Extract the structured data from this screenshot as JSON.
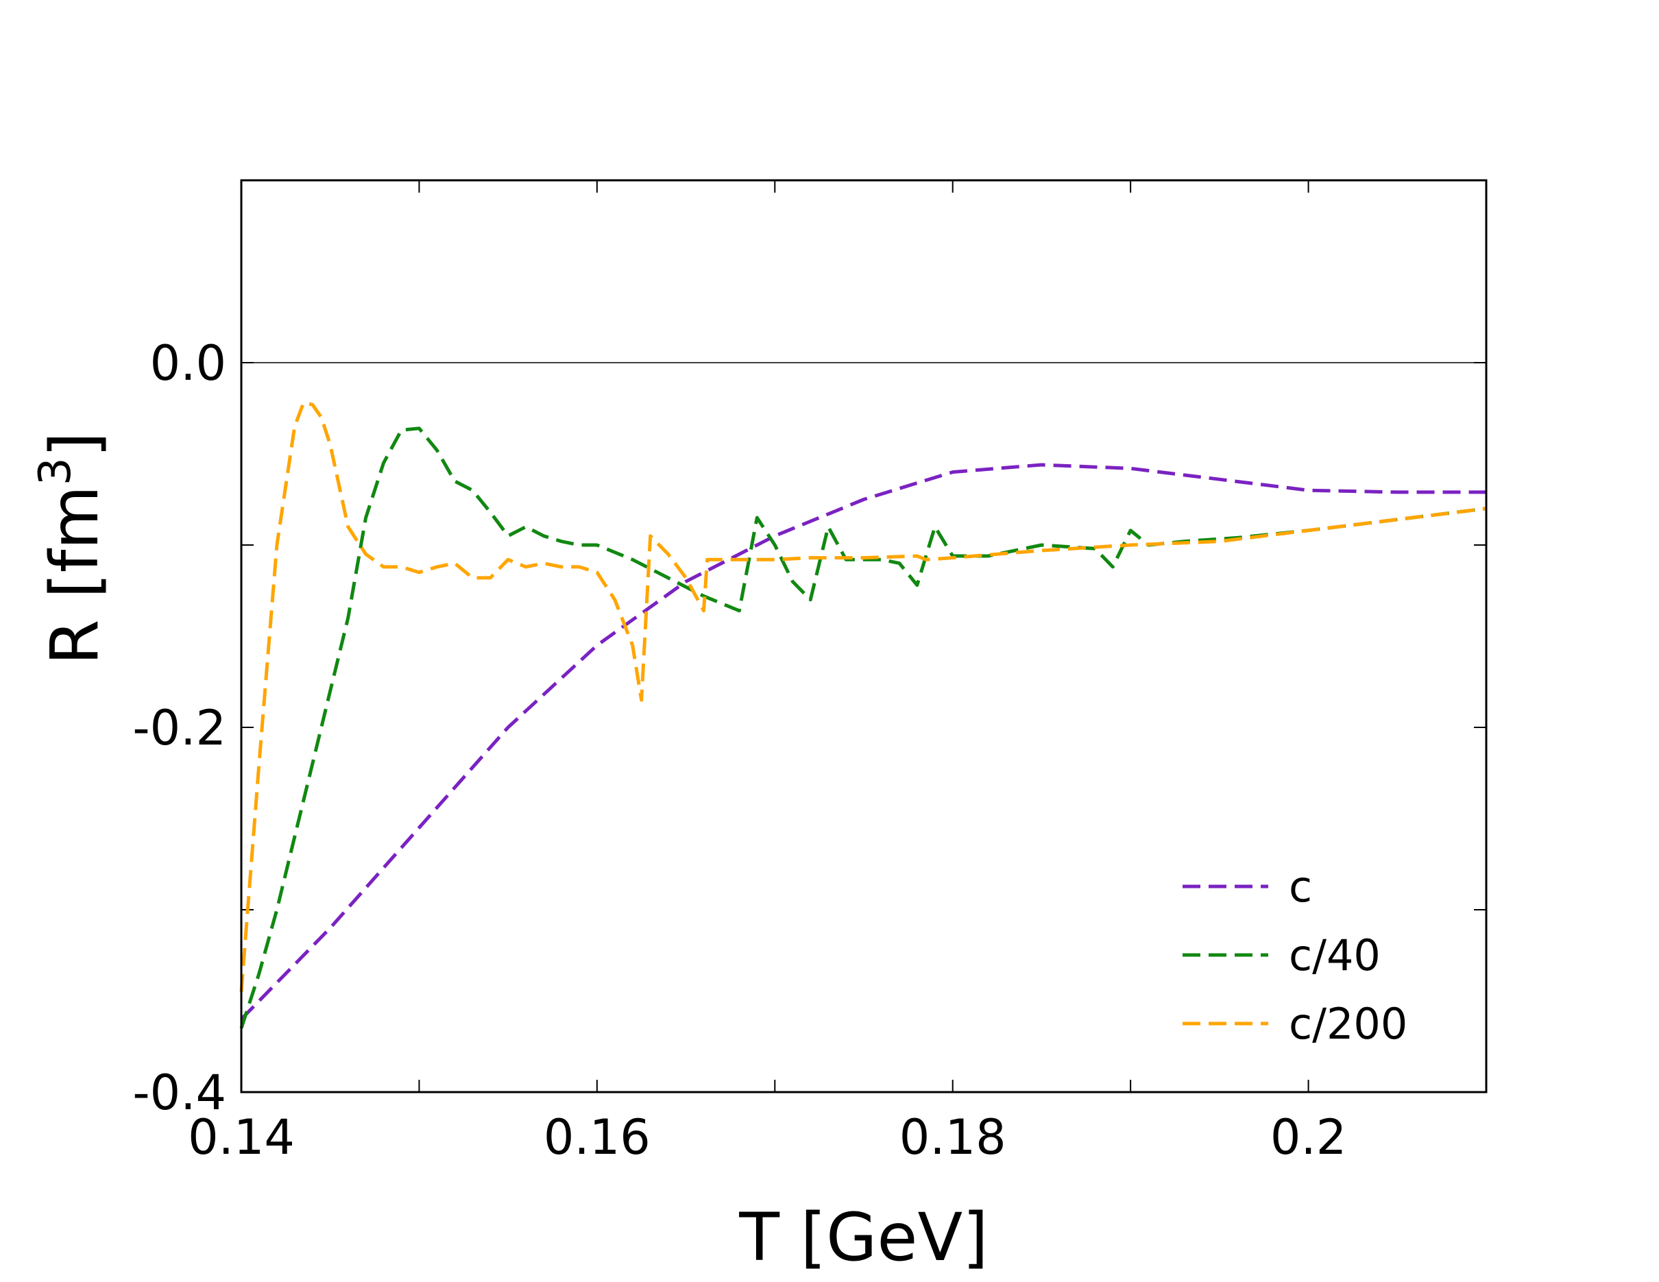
{
  "chart_data": {
    "type": "line",
    "title": "",
    "xlabel": "T [GeV]",
    "ylabel_main": "R [fm",
    "ylabel_sup": "3",
    "ylabel_close": "]",
    "xlim": [
      0.14,
      0.21
    ],
    "ylim": [
      -0.4,
      0.1
    ],
    "x_ticks": [
      0.14,
      0.16,
      0.18,
      0.2
    ],
    "x_tick_labels": [
      "0.14",
      "0.16",
      "0.18",
      "0.2"
    ],
    "y_ticks": [
      -0.4,
      -0.2,
      0.0
    ],
    "y_tick_labels": [
      "-0.4",
      "-0.2",
      "0.0"
    ],
    "y_minor_ticks": [
      -0.3,
      -0.1,
      0.1
    ],
    "x_minor_ticks": [
      0.15,
      0.17,
      0.19
    ],
    "zero_line": 0.0,
    "grid": false,
    "legend_position": "bottom-right",
    "series": [
      {
        "name": "c",
        "color": "#7a22c2",
        "x": [
          0.14,
          0.145,
          0.15,
          0.155,
          0.16,
          0.165,
          0.17,
          0.175,
          0.18,
          0.185,
          0.19,
          0.195,
          0.2,
          0.205,
          0.21
        ],
        "y": [
          -0.36,
          -0.31,
          -0.255,
          -0.2,
          -0.155,
          -0.12,
          -0.095,
          -0.075,
          -0.06,
          -0.056,
          -0.058,
          -0.064,
          -0.07,
          -0.071,
          -0.071
        ]
      },
      {
        "name": "c/40",
        "color": "#118811",
        "x": [
          0.14,
          0.141,
          0.142,
          0.143,
          0.144,
          0.145,
          0.146,
          0.147,
          0.148,
          0.149,
          0.15,
          0.151,
          0.152,
          0.153,
          0.154,
          0.155,
          0.156,
          0.157,
          0.158,
          0.159,
          0.16,
          0.162,
          0.164,
          0.166,
          0.168,
          0.169,
          0.17,
          0.171,
          0.172,
          0.173,
          0.174,
          0.175,
          0.176,
          0.177,
          0.178,
          0.179,
          0.18,
          0.182,
          0.185,
          0.188,
          0.189,
          0.19,
          0.191,
          0.193,
          0.196,
          0.2,
          0.205,
          0.21
        ],
        "y": [
          -0.365,
          -0.335,
          -0.3,
          -0.26,
          -0.22,
          -0.18,
          -0.14,
          -0.085,
          -0.055,
          -0.037,
          -0.036,
          -0.048,
          -0.065,
          -0.07,
          -0.082,
          -0.095,
          -0.09,
          -0.095,
          -0.098,
          -0.1,
          -0.1,
          -0.108,
          -0.118,
          -0.128,
          -0.136,
          -0.085,
          -0.1,
          -0.12,
          -0.13,
          -0.09,
          -0.108,
          -0.108,
          -0.108,
          -0.11,
          -0.122,
          -0.09,
          -0.106,
          -0.106,
          -0.1,
          -0.102,
          -0.112,
          -0.092,
          -0.1,
          -0.098,
          -0.096,
          -0.092,
          -0.086,
          -0.08
        ]
      },
      {
        "name": "c/200",
        "color": "#ffa500",
        "x": [
          0.14,
          0.141,
          0.142,
          0.143,
          0.1435,
          0.144,
          0.1445,
          0.145,
          0.146,
          0.147,
          0.148,
          0.149,
          0.15,
          0.151,
          0.152,
          0.153,
          0.154,
          0.155,
          0.156,
          0.157,
          0.158,
          0.159,
          0.16,
          0.161,
          0.162,
          0.1625,
          0.163,
          0.164,
          0.165,
          0.166,
          0.1662,
          0.168,
          0.17,
          0.172,
          0.175,
          0.178,
          0.1785,
          0.18,
          0.185,
          0.19,
          0.195,
          0.2,
          0.205,
          0.21
        ],
        "y": [
          -0.345,
          -0.22,
          -0.1,
          -0.035,
          -0.022,
          -0.023,
          -0.03,
          -0.045,
          -0.09,
          -0.105,
          -0.112,
          -0.112,
          -0.115,
          -0.112,
          -0.11,
          -0.118,
          -0.118,
          -0.108,
          -0.112,
          -0.11,
          -0.112,
          -0.112,
          -0.115,
          -0.13,
          -0.155,
          -0.185,
          -0.095,
          -0.105,
          -0.118,
          -0.136,
          -0.108,
          -0.108,
          -0.108,
          -0.107,
          -0.107,
          -0.106,
          -0.108,
          -0.107,
          -0.103,
          -0.1,
          -0.098,
          -0.092,
          -0.086,
          -0.08
        ]
      }
    ]
  }
}
